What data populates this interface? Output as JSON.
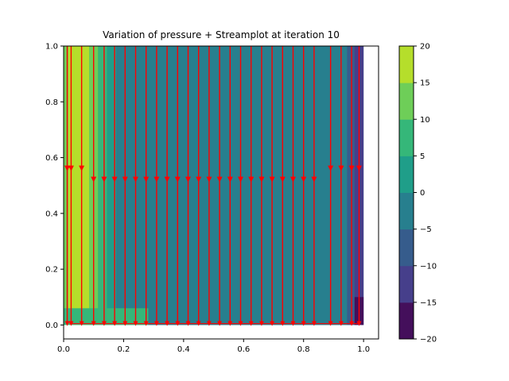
{
  "chart_data": {
    "type": "contourf+streamplot",
    "title": "Variation of pressure + Streamplot at iteration 10",
    "xlabel": "",
    "ylabel": "",
    "xlim": [
      0.0,
      1.05
    ],
    "ylim": [
      -0.05,
      1.0
    ],
    "x_ticks": [
      0.0,
      0.2,
      0.4,
      0.6,
      0.8,
      1.0
    ],
    "x_tick_labels": [
      "0.0",
      "0.2",
      "0.4",
      "0.6",
      "0.8",
      "1.0"
    ],
    "y_ticks": [
      0.0,
      0.2,
      0.4,
      0.6,
      0.8,
      1.0
    ],
    "y_tick_labels": [
      "0.0",
      "0.2",
      "0.4",
      "0.6",
      "0.8",
      "1.0"
    ],
    "grid": false,
    "pressure_bands": [
      {
        "x_start": 0.0,
        "x_end": 0.015,
        "level": 10
      },
      {
        "x_start": 0.015,
        "x_end": 0.085,
        "level": 15
      },
      {
        "x_start": 0.085,
        "x_end": 0.115,
        "level": 10
      },
      {
        "x_start": 0.115,
        "x_end": 0.145,
        "level": 5
      },
      {
        "x_start": 0.145,
        "x_end": 0.175,
        "level": 0
      },
      {
        "x_start": 0.175,
        "x_end": 0.945,
        "level": -5
      },
      {
        "x_start": 0.945,
        "x_end": 0.97,
        "level": -10
      },
      {
        "x_start": 0.97,
        "x_end": 1.0,
        "level": -15
      }
    ],
    "colorbar": {
      "levels": [
        -20,
        -15,
        -10,
        -5,
        0,
        5,
        10,
        15,
        20
      ],
      "tick_labels": [
        "−20",
        "−15",
        "−10",
        "−5",
        "0",
        "5",
        "10",
        "15",
        "20"
      ],
      "colors": [
        "#440f5b",
        "#463f8b",
        "#365c8c",
        "#277f8e",
        "#1f9e89",
        "#35b779",
        "#6ece58",
        "#b5de2b",
        "#dde318"
      ]
    },
    "streamlines": {
      "color": "#ff0000",
      "x_positions": [
        0.012,
        0.025,
        0.06,
        0.1,
        0.135,
        0.17,
        0.205,
        0.24,
        0.275,
        0.31,
        0.345,
        0.38,
        0.415,
        0.45,
        0.485,
        0.52,
        0.555,
        0.59,
        0.625,
        0.66,
        0.695,
        0.73,
        0.765,
        0.8,
        0.835,
        0.89,
        0.925,
        0.96,
        0.985
      ],
      "direction": "downward",
      "arrow_y": 0.52,
      "arrow_y_edges": 0.56,
      "bottom_y": 0.005
    },
    "background_color": "#277f8e"
  }
}
